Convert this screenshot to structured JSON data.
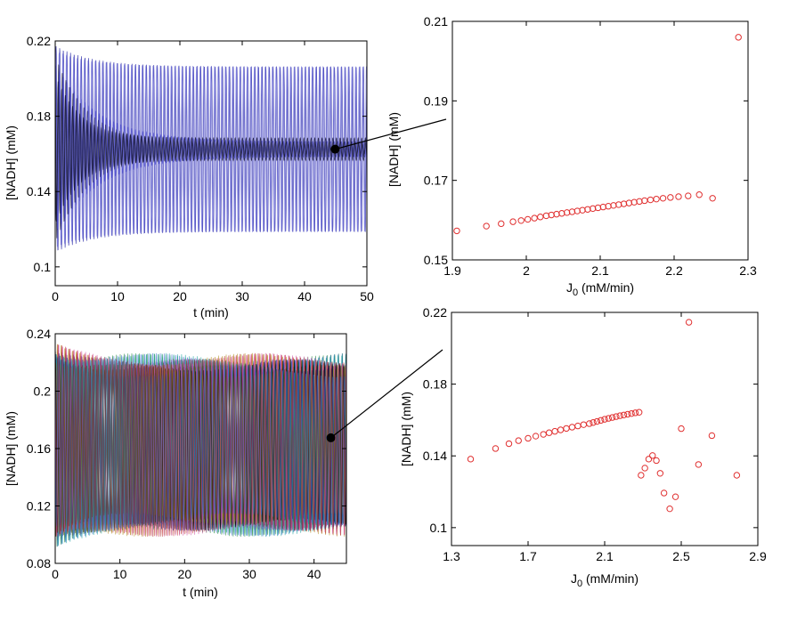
{
  "chart_data": [
    {
      "panel": "top-left",
      "type": "line",
      "xlabel": "t (min)",
      "ylabel": "[NADH] (mM)",
      "xlim": [
        0,
        50
      ],
      "ylim": [
        0.09,
        0.22
      ],
      "xticks": [
        0,
        10,
        20,
        30,
        40,
        50
      ],
      "yticks": [
        0.1,
        0.14,
        0.18,
        0.22
      ],
      "colors": [
        "#2a2aa8",
        "#7a7ae0",
        "#111133",
        "#4d4dcc"
      ],
      "description_series": {
        "period": 0.58,
        "center": 0.1625,
        "amp_large_initial": 0.055,
        "amp_large_final": 0.044,
        "amp_small_initial": 0.05,
        "amp_small_final": 0.004
      },
      "highlight_point": {
        "x": 44.9,
        "y": 0.1625
      }
    },
    {
      "panel": "top-right",
      "type": "scatter",
      "xlabel": "J",
      "xlabel_sub": "0",
      "xlabel_unit": " (mM/min)",
      "ylabel": "[NADH] (mM)",
      "xlim": [
        1.9,
        2.3
      ],
      "ylim": [
        0.15,
        0.21
      ],
      "xticks": [
        "1.9",
        "2",
        "2.1",
        "2.2",
        "2.3"
      ],
      "yticks": [
        "0.15",
        "0.17",
        "0.19",
        "0.21"
      ],
      "marker_color": "#e03030",
      "points": [
        [
          1.906,
          0.1573
        ],
        [
          1.946,
          0.1585
        ],
        [
          1.966,
          0.1591
        ],
        [
          1.982,
          0.1596
        ],
        [
          1.993,
          0.1599
        ],
        [
          2.002,
          0.1602
        ],
        [
          2.011,
          0.1605
        ],
        [
          2.019,
          0.1608
        ],
        [
          2.027,
          0.1611
        ],
        [
          2.034,
          0.1613
        ],
        [
          2.041,
          0.1615
        ],
        [
          2.048,
          0.1617
        ],
        [
          2.055,
          0.1619
        ],
        [
          2.062,
          0.1621
        ],
        [
          2.069,
          0.1623
        ],
        [
          2.076,
          0.1625
        ],
        [
          2.083,
          0.1627
        ],
        [
          2.09,
          0.1629
        ],
        [
          2.097,
          0.1631
        ],
        [
          2.104,
          0.1633
        ],
        [
          2.111,
          0.1635
        ],
        [
          2.118,
          0.1637
        ],
        [
          2.125,
          0.1639
        ],
        [
          2.132,
          0.1641
        ],
        [
          2.139,
          0.1643
        ],
        [
          2.146,
          0.1645
        ],
        [
          2.153,
          0.1647
        ],
        [
          2.16,
          0.1649
        ],
        [
          2.168,
          0.1651
        ],
        [
          2.176,
          0.1653
        ],
        [
          2.185,
          0.1655
        ],
        [
          2.195,
          0.1657
        ],
        [
          2.206,
          0.1659
        ],
        [
          2.219,
          0.1661
        ],
        [
          2.234,
          0.1664
        ],
        [
          2.252,
          0.1655
        ],
        [
          2.287,
          0.206
        ]
      ]
    },
    {
      "panel": "bottom-left",
      "type": "line",
      "xlabel": "t (min)",
      "ylabel": "[NADH] (mM)",
      "xlim": [
        0,
        45
      ],
      "ylim": [
        0.08,
        0.24
      ],
      "xticks": [
        0,
        10,
        20,
        30,
        40
      ],
      "yticks": [
        0.08,
        0.12,
        0.16,
        0.2,
        0.24
      ],
      "colors": [
        "#1f2fbf",
        "#c03030",
        "#1a8a3a",
        "#8a2aa8",
        "#1aa0a0",
        "#b08a1a",
        "#000000",
        "#d050a0",
        "#3a6ad0",
        "#604020"
      ],
      "highlight_point": {
        "x": 42.6,
        "y": 0.1675
      }
    },
    {
      "panel": "bottom-right",
      "type": "scatter",
      "xlabel": "J",
      "xlabel_sub": "0",
      "xlabel_unit": " (mM/min)",
      "ylabel": "[NADH] (mM)",
      "xlim": [
        1.3,
        2.9
      ],
      "ylim": [
        0.09,
        0.22
      ],
      "xticks": [
        "1.3",
        "1.7",
        "2.1",
        "2.5",
        "2.9"
      ],
      "yticks": [
        "0.1",
        "0.14",
        "0.18",
        "0.22"
      ],
      "marker_color": "#e03030",
      "points": [
        [
          1.4,
          0.1382
        ],
        [
          1.53,
          0.1441
        ],
        [
          1.6,
          0.1468
        ],
        [
          1.65,
          0.1485
        ],
        [
          1.7,
          0.1498
        ],
        [
          1.74,
          0.151
        ],
        [
          1.78,
          0.152
        ],
        [
          1.81,
          0.1529
        ],
        [
          1.84,
          0.1537
        ],
        [
          1.87,
          0.1545
        ],
        [
          1.9,
          0.1553
        ],
        [
          1.93,
          0.156
        ],
        [
          1.96,
          0.1567
        ],
        [
          1.99,
          0.1574
        ],
        [
          2.02,
          0.158
        ],
        [
          2.04,
          0.1586
        ],
        [
          2.06,
          0.1592
        ],
        [
          2.08,
          0.1598
        ],
        [
          2.1,
          0.1604
        ],
        [
          2.12,
          0.1609
        ],
        [
          2.14,
          0.1614
        ],
        [
          2.16,
          0.1619
        ],
        [
          2.18,
          0.1624
        ],
        [
          2.2,
          0.1628
        ],
        [
          2.22,
          0.1632
        ],
        [
          2.24,
          0.1636
        ],
        [
          2.26,
          0.164
        ],
        [
          2.28,
          0.1643
        ],
        [
          2.29,
          0.1292
        ],
        [
          2.31,
          0.1332
        ],
        [
          2.33,
          0.1382
        ],
        [
          2.35,
          0.1402
        ],
        [
          2.37,
          0.1374
        ],
        [
          2.39,
          0.1303
        ],
        [
          2.41,
          0.1193
        ],
        [
          2.44,
          0.1105
        ],
        [
          2.47,
          0.1172
        ],
        [
          2.5,
          0.1552
        ],
        [
          2.54,
          0.2145
        ],
        [
          2.59,
          0.1352
        ],
        [
          2.66,
          0.1513
        ],
        [
          2.79,
          0.1292
        ]
      ]
    }
  ]
}
